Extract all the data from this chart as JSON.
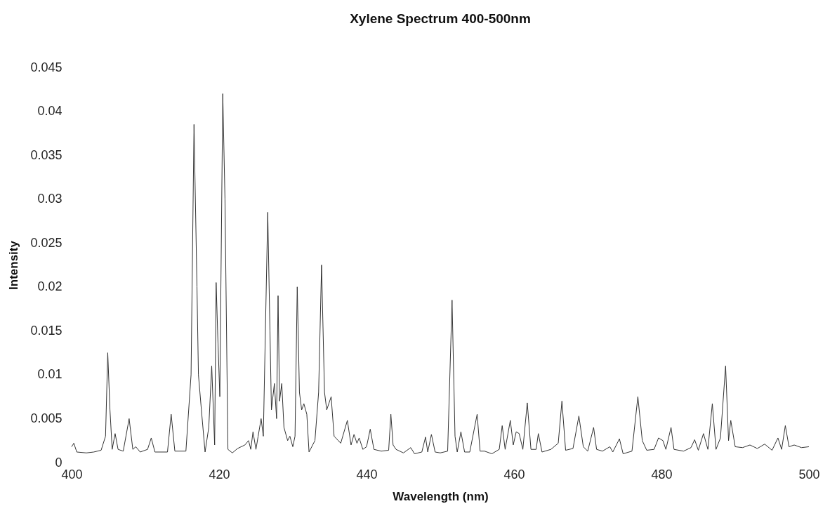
{
  "chart_data": {
    "type": "line",
    "title": "Xylene Spectrum 400-500nm",
    "xlabel": "Wavelength (nm)",
    "ylabel": "Intensity",
    "xlim": [
      400,
      500
    ],
    "xticks": [
      400,
      420,
      440,
      460,
      480,
      500
    ],
    "ylim": [
      0,
      0.045
    ],
    "yticks": [
      0,
      0.005,
      0.01,
      0.015,
      0.02,
      0.025,
      0.03,
      0.035,
      0.04,
      0.045
    ],
    "marker": "none",
    "line_style": "solid",
    "series": [
      {
        "color": "#333333",
        "x": [
          400,
          400.3,
          400.7,
          402,
          403,
          404,
          404.6,
          404.9,
          405.2,
          405.5,
          405.9,
          406.3,
          407,
          407.8,
          408.3,
          408.7,
          409.3,
          410.3,
          410.8,
          411.3,
          413,
          413.5,
          414,
          415.5,
          416.2,
          416.6,
          417,
          417.2,
          417.6,
          418.1,
          418.6,
          419,
          419.4,
          419.6,
          419.8,
          420.1,
          420.5,
          420.8,
          421.2,
          421.8,
          422.5,
          423.5,
          424,
          424.3,
          424.6,
          425,
          425.3,
          425.7,
          426,
          426.6,
          426.9,
          427.1,
          427.5,
          427.8,
          428,
          428.2,
          428.5,
          428.8,
          429.3,
          429.6,
          430,
          430.3,
          430.6,
          430.9,
          431.2,
          431.5,
          431.9,
          432.2,
          433,
          433.5,
          433.9,
          434.3,
          434.6,
          435.2,
          435.6,
          436.5,
          437.4,
          437.9,
          438.3,
          438.7,
          439,
          439.5,
          440,
          440.5,
          441,
          442,
          443,
          443.3,
          443.6,
          444,
          445,
          446,
          446.5,
          447.5,
          448,
          448.3,
          448.8,
          449.3,
          450,
          451,
          451.6,
          452,
          452.3,
          452.8,
          453.3,
          454,
          455,
          455.4,
          456,
          457,
          458,
          458.4,
          458.8,
          459.5,
          459.9,
          460.3,
          460.7,
          461.2,
          461.8,
          462.3,
          463,
          463.3,
          463.8,
          465,
          466,
          466.5,
          467,
          468,
          468.8,
          469.4,
          470,
          470.8,
          471.2,
          472,
          473,
          473.4,
          474.3,
          474.8,
          476,
          476.8,
          477.4,
          478,
          479,
          479.6,
          480.2,
          480.6,
          481.3,
          481.7,
          483,
          484,
          484.5,
          485,
          485.7,
          486.3,
          486.9,
          487.4,
          488,
          488.7,
          489.1,
          489.4,
          490,
          491,
          492,
          493,
          494,
          495,
          495.8,
          496.3,
          496.8,
          497.3,
          498,
          499,
          500
        ],
        "values": [
          0.0018,
          0.0022,
          0.0012,
          0.0011,
          0.0012,
          0.0014,
          0.003,
          0.0125,
          0.006,
          0.0015,
          0.0033,
          0.0015,
          0.0013,
          0.005,
          0.0015,
          0.0018,
          0.0012,
          0.0015,
          0.0028,
          0.0012,
          0.0012,
          0.0055,
          0.0013,
          0.0013,
          0.01,
          0.0385,
          0.02,
          0.01,
          0.006,
          0.0012,
          0.004,
          0.011,
          0.002,
          0.0205,
          0.015,
          0.0075,
          0.042,
          0.03,
          0.0015,
          0.0011,
          0.0016,
          0.002,
          0.0025,
          0.0015,
          0.0035,
          0.0015,
          0.003,
          0.005,
          0.003,
          0.0285,
          0.015,
          0.006,
          0.009,
          0.005,
          0.019,
          0.007,
          0.009,
          0.004,
          0.0025,
          0.003,
          0.0018,
          0.003,
          0.02,
          0.008,
          0.006,
          0.0067,
          0.0055,
          0.0012,
          0.0025,
          0.008,
          0.0225,
          0.008,
          0.006,
          0.0075,
          0.003,
          0.0022,
          0.0048,
          0.002,
          0.0032,
          0.0022,
          0.0028,
          0.0015,
          0.0018,
          0.0038,
          0.0015,
          0.0013,
          0.0014,
          0.0055,
          0.002,
          0.0015,
          0.0011,
          0.0017,
          0.001,
          0.0012,
          0.0029,
          0.0012,
          0.0032,
          0.0012,
          0.0011,
          0.0013,
          0.0185,
          0.003,
          0.0012,
          0.0035,
          0.0012,
          0.0012,
          0.0055,
          0.0013,
          0.0013,
          0.001,
          0.0015,
          0.0042,
          0.0015,
          0.0048,
          0.002,
          0.0035,
          0.0033,
          0.0015,
          0.0068,
          0.0015,
          0.0015,
          0.0033,
          0.0012,
          0.0015,
          0.0022,
          0.007,
          0.0014,
          0.0016,
          0.0053,
          0.0018,
          0.0013,
          0.004,
          0.0015,
          0.0013,
          0.0018,
          0.0012,
          0.0027,
          0.001,
          0.0013,
          0.0075,
          0.0025,
          0.0014,
          0.0015,
          0.0028,
          0.0025,
          0.0015,
          0.004,
          0.0015,
          0.0013,
          0.0017,
          0.0026,
          0.0014,
          0.0033,
          0.0015,
          0.0067,
          0.0015,
          0.0028,
          0.011,
          0.0025,
          0.0048,
          0.0018,
          0.0017,
          0.002,
          0.0016,
          0.0021,
          0.0014,
          0.0028,
          0.0015,
          0.0042,
          0.0018,
          0.002,
          0.0017,
          0.0018
        ]
      }
    ]
  }
}
